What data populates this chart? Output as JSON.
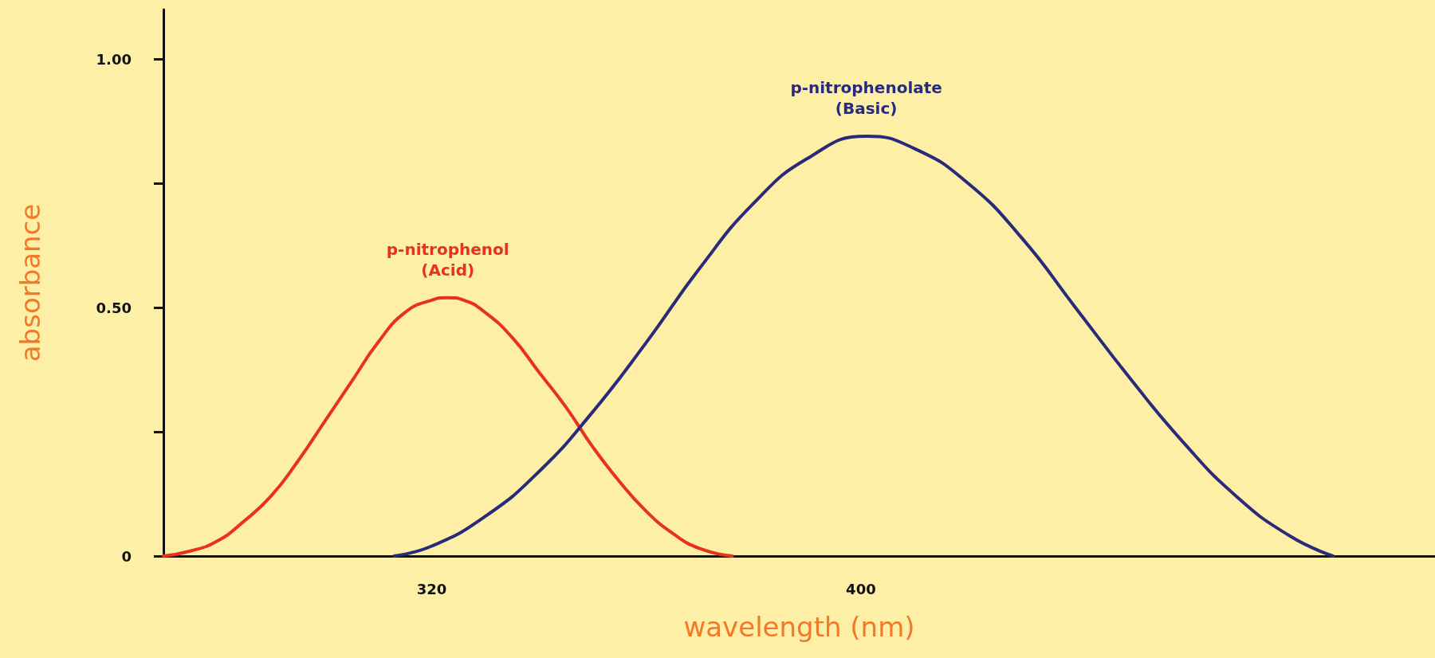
{
  "chart_data": {
    "type": "line",
    "xlabel": "wavelength (nm)",
    "ylabel": "absorbance",
    "xlim": [
      270,
      507
    ],
    "ylim": [
      0,
      1.1
    ],
    "xticks": [
      320,
      400
    ],
    "yticks": [
      {
        "value": 0,
        "label": "0"
      },
      {
        "value": 0.25,
        "label": null
      },
      {
        "value": 0.5,
        "label": "0.50"
      },
      {
        "value": 0.75,
        "label": null
      },
      {
        "value": 1,
        "label": "1.00"
      }
    ],
    "grid": false,
    "legend": false,
    "marker": "none",
    "line_style": "solid",
    "series": [
      {
        "name": "p-nitrophenol\n(Acid)",
        "color": "#e8321e",
        "x": [
          270,
          275,
          280,
          285,
          290,
          295,
          300,
          305,
          310,
          315,
          320,
          323,
          326,
          330,
          335,
          340,
          345,
          350,
          355,
          360,
          365,
          370,
          376
        ],
        "values": [
          0,
          0.01,
          0.03,
          0.07,
          0.12,
          0.19,
          0.27,
          0.35,
          0.43,
          0.49,
          0.515,
          0.52,
          0.515,
          0.49,
          0.44,
          0.37,
          0.3,
          0.22,
          0.15,
          0.09,
          0.045,
          0.015,
          0
        ]
      },
      {
        "name": "p-nitrophenolate\n(Basic)",
        "color": "#2a2a7a",
        "x": [
          313,
          320,
          330,
          340,
          350,
          360,
          370,
          380,
          390,
          401,
          410,
          420,
          430,
          440,
          450,
          460,
          470,
          480,
          488
        ],
        "values": [
          0,
          0.02,
          0.08,
          0.17,
          0.29,
          0.43,
          0.58,
          0.71,
          0.8,
          0.845,
          0.82,
          0.75,
          0.64,
          0.5,
          0.36,
          0.23,
          0.12,
          0.04,
          0
        ]
      }
    ]
  }
}
